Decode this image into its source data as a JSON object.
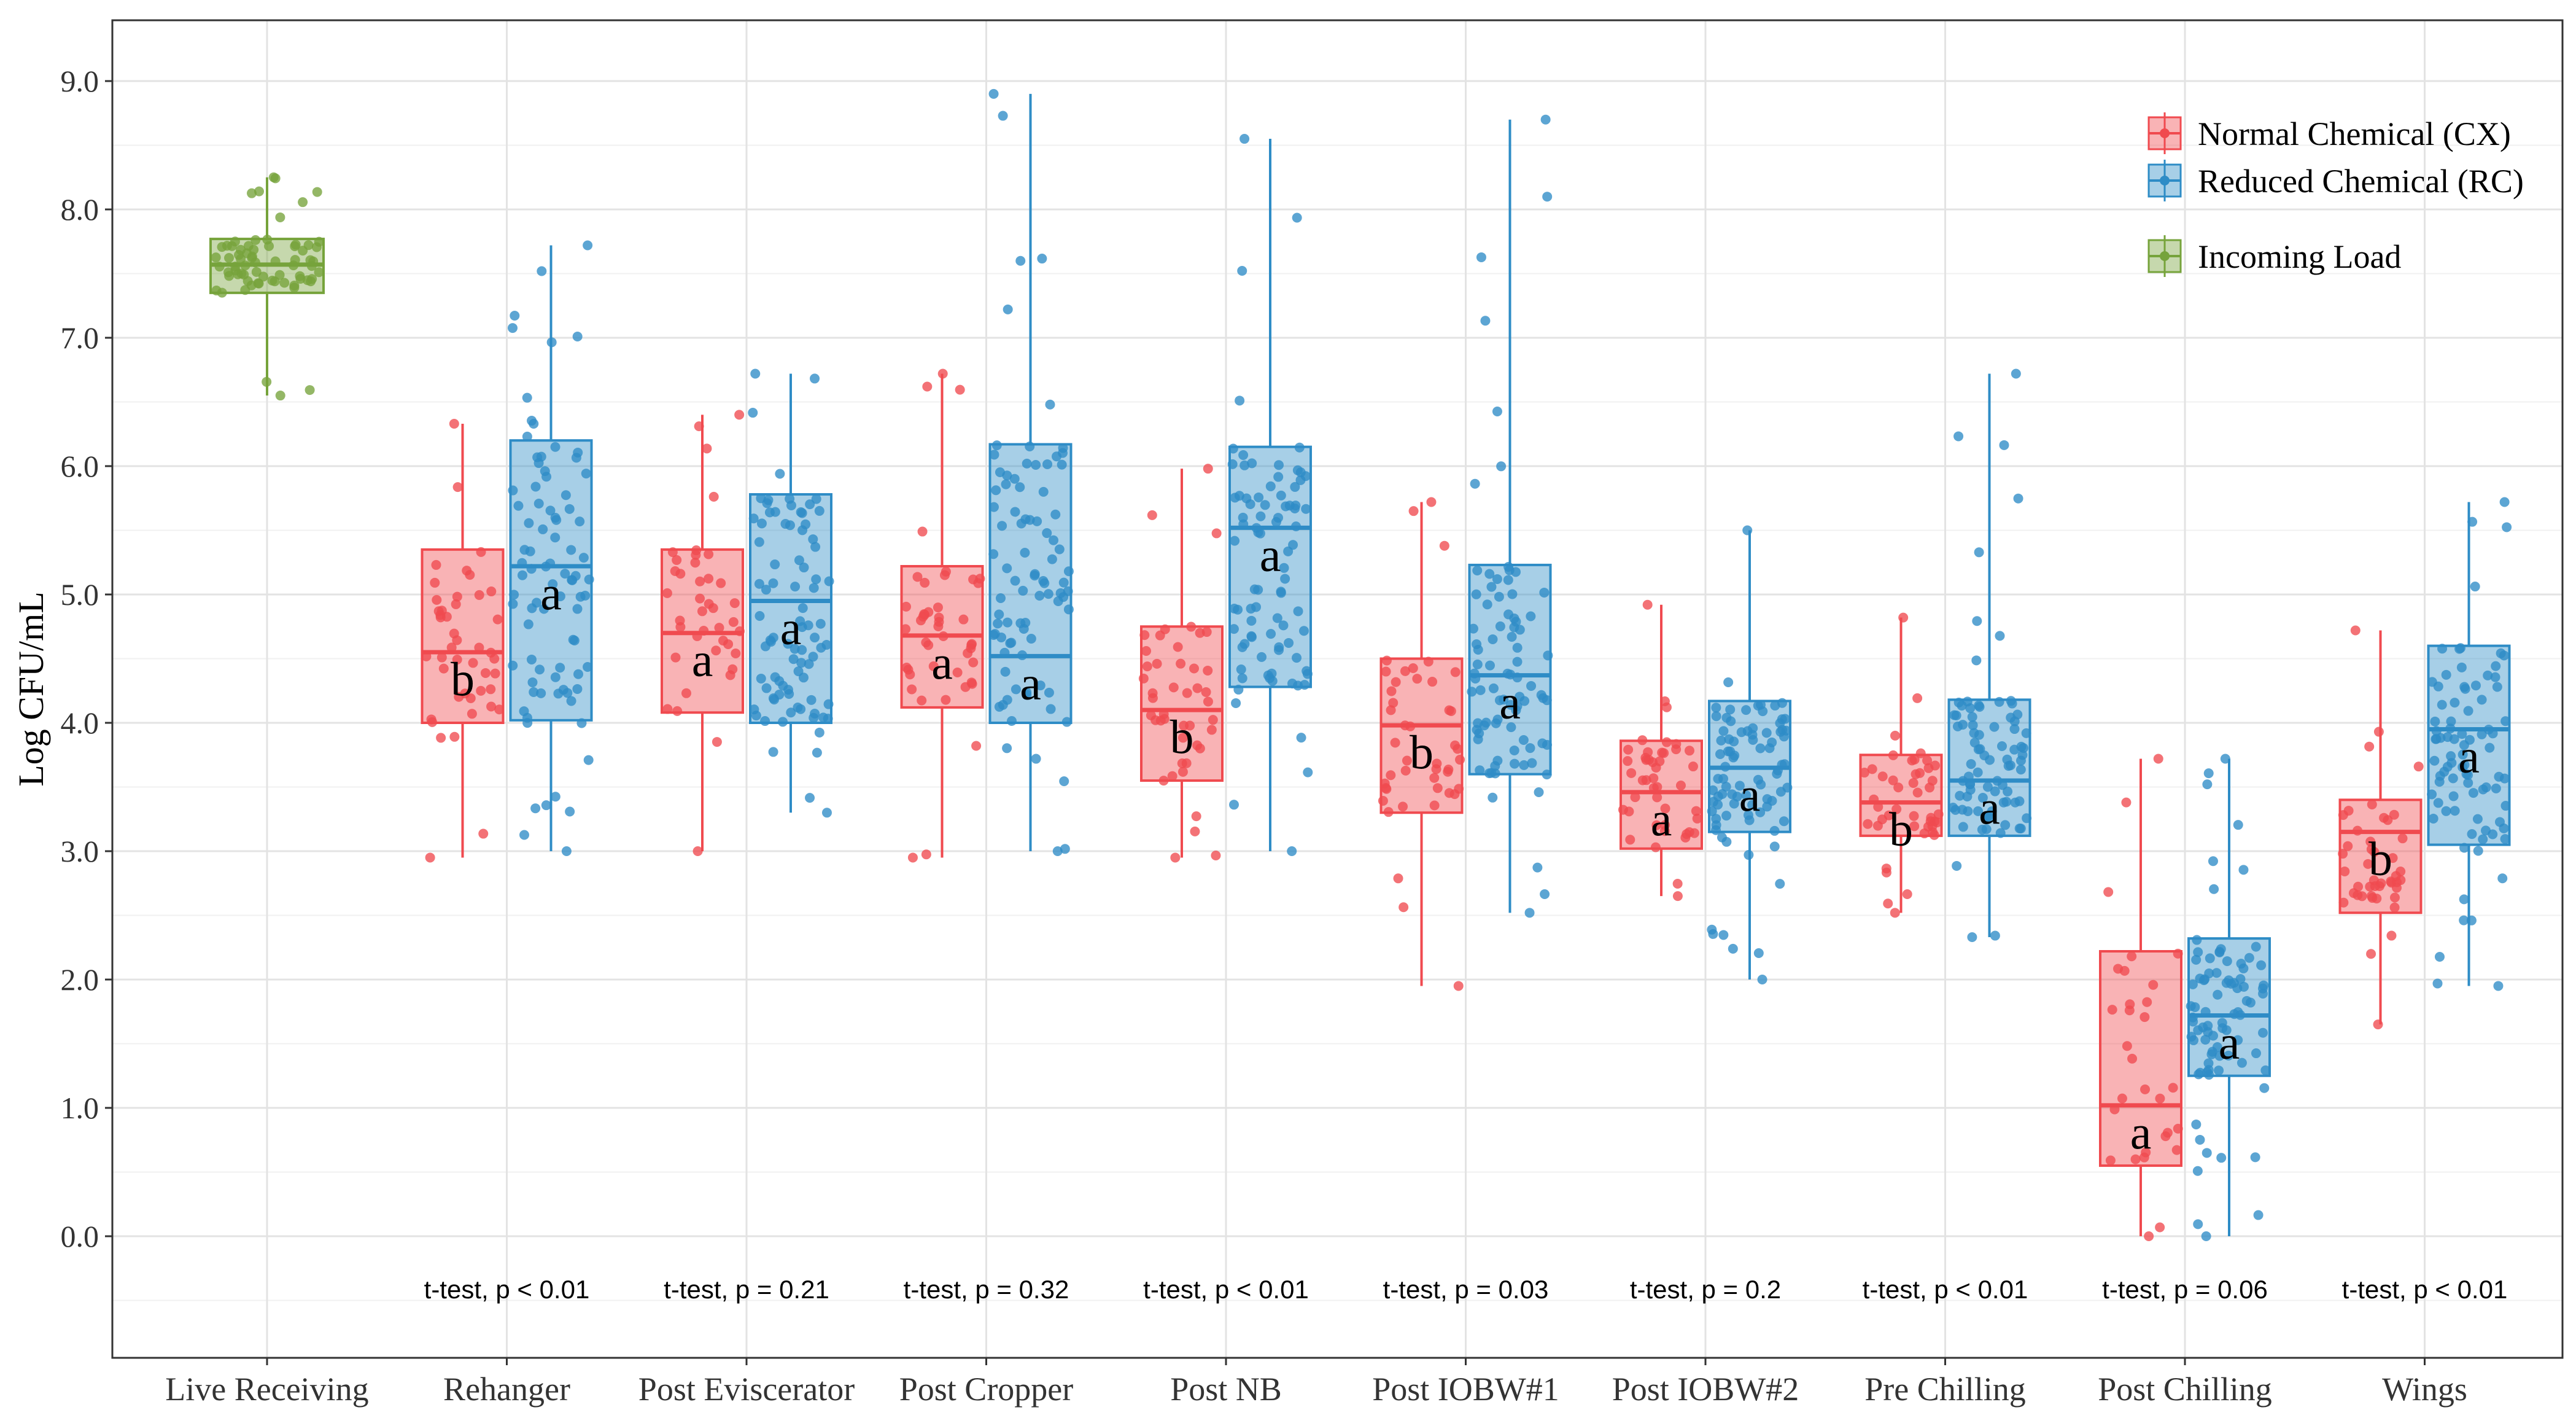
{
  "chart_data": {
    "type": "boxplot",
    "ylabel": "Log CFU/mL",
    "xlabel": "",
    "ylim": [
      -1.0,
      9.5
    ],
    "yticks": [
      0,
      1,
      2,
      3,
      4,
      5,
      6,
      7,
      8,
      9
    ],
    "ytick_labels": [
      "0.0",
      "1.0",
      "2.0",
      "3.0",
      "4.0",
      "5.0",
      "6.0",
      "7.0",
      "8.0",
      "9.0"
    ],
    "grid": true,
    "legend_position": "top-right",
    "colors": {
      "CX": "#f04a4f",
      "RC": "#2e8cc6",
      "Incoming": "#76a33b"
    },
    "legend": [
      {
        "key": "CX",
        "label": "Normal Chemical (CX)"
      },
      {
        "key": "RC",
        "label": "Reduced Chemical (RC)"
      },
      {
        "key": "Incoming",
        "label": "Incoming Load"
      }
    ],
    "categories": [
      {
        "label": "Live Receiving",
        "ttest": null,
        "boxes": [
          {
            "series": "Incoming",
            "min": 6.55,
            "q1": 7.35,
            "median": 7.57,
            "q3": 7.77,
            "max": 8.25,
            "letter": null,
            "n": 70
          }
        ]
      },
      {
        "label": "Rehanger",
        "ttest": "t-test, p < 0.01",
        "boxes": [
          {
            "series": "CX",
            "min": 2.95,
            "q1": 4.0,
            "median": 4.55,
            "q3": 5.35,
            "max": 6.33,
            "letter": "b",
            "n": 45
          },
          {
            "series": "RC",
            "min": 3.0,
            "q1": 4.02,
            "median": 5.22,
            "q3": 6.2,
            "max": 7.72,
            "letter": "a",
            "n": 85
          }
        ]
      },
      {
        "label": "Post Eviscerator",
        "ttest": "t-test, p = 0.21",
        "boxes": [
          {
            "series": "CX",
            "min": 3.0,
            "q1": 4.08,
            "median": 4.7,
            "q3": 5.35,
            "max": 6.4,
            "letter": "a",
            "n": 40
          },
          {
            "series": "RC",
            "min": 3.3,
            "q1": 4.0,
            "median": 4.95,
            "q3": 5.78,
            "max": 6.72,
            "letter": "a",
            "n": 85
          }
        ]
      },
      {
        "label": "Post Cropper",
        "ttest": "t-test, p = 0.32",
        "boxes": [
          {
            "series": "CX",
            "min": 2.95,
            "q1": 4.12,
            "median": 4.68,
            "q3": 5.22,
            "max": 6.72,
            "letter": "a",
            "n": 45
          },
          {
            "series": "RC",
            "min": 3.0,
            "q1": 4.0,
            "median": 4.52,
            "q3": 6.17,
            "max": 8.9,
            "letter": "a",
            "n": 85
          }
        ]
      },
      {
        "label": "Post NB",
        "ttest": "t-test, p < 0.01",
        "boxes": [
          {
            "series": "CX",
            "min": 2.95,
            "q1": 3.55,
            "median": 4.1,
            "q3": 4.75,
            "max": 5.98,
            "letter": "b",
            "n": 45
          },
          {
            "series": "RC",
            "min": 3.0,
            "q1": 4.28,
            "median": 5.52,
            "q3": 6.15,
            "max": 8.55,
            "letter": "a",
            "n": 85
          }
        ]
      },
      {
        "label": "Post IOBW#1",
        "ttest": "t-test, p = 0.03",
        "boxes": [
          {
            "series": "CX",
            "min": 1.95,
            "q1": 3.3,
            "median": 3.98,
            "q3": 4.5,
            "max": 5.72,
            "letter": "b",
            "n": 45
          },
          {
            "series": "RC",
            "min": 2.52,
            "q1": 3.6,
            "median": 4.37,
            "q3": 5.23,
            "max": 8.7,
            "letter": "a",
            "n": 85
          }
        ]
      },
      {
        "label": "Post IOBW#2",
        "ttest": "t-test, p = 0.2",
        "boxes": [
          {
            "series": "CX",
            "min": 2.65,
            "q1": 3.02,
            "median": 3.46,
            "q3": 3.86,
            "max": 4.92,
            "letter": "a",
            "n": 45
          },
          {
            "series": "RC",
            "min": 2.0,
            "q1": 3.15,
            "median": 3.65,
            "q3": 4.17,
            "max": 5.5,
            "letter": "a",
            "n": 85
          }
        ]
      },
      {
        "label": "Pre Chilling",
        "ttest": "t-test, p < 0.01",
        "boxes": [
          {
            "series": "CX",
            "min": 2.52,
            "q1": 3.12,
            "median": 3.38,
            "q3": 3.75,
            "max": 4.82,
            "letter": "b",
            "n": 45
          },
          {
            "series": "RC",
            "min": 2.33,
            "q1": 3.12,
            "median": 3.55,
            "q3": 4.18,
            "max": 6.72,
            "letter": "a",
            "n": 85
          }
        ]
      },
      {
        "label": "Post Chilling",
        "ttest": "t-test, p = 0.06",
        "boxes": [
          {
            "series": "CX",
            "min": 0.0,
            "q1": 0.55,
            "median": 1.02,
            "q3": 2.22,
            "max": 3.72,
            "letter": "a",
            "n": 30
          },
          {
            "series": "RC",
            "min": 0.0,
            "q1": 1.25,
            "median": 1.72,
            "q3": 2.32,
            "max": 3.72,
            "letter": "a",
            "n": 85
          }
        ]
      },
      {
        "label": "Wings",
        "ttest": "t-test, p < 0.01",
        "boxes": [
          {
            "series": "CX",
            "min": 1.65,
            "q1": 2.52,
            "median": 3.15,
            "q3": 3.4,
            "max": 4.72,
            "letter": "b",
            "n": 45
          },
          {
            "series": "RC",
            "min": 1.95,
            "q1": 3.05,
            "median": 3.95,
            "q3": 4.6,
            "max": 5.72,
            "letter": "a",
            "n": 85
          }
        ]
      }
    ]
  }
}
